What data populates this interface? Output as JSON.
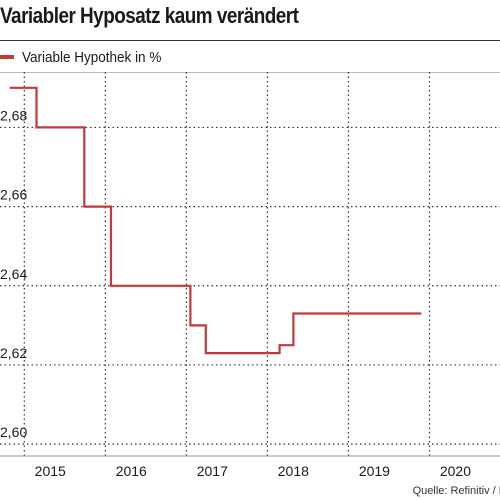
{
  "title": "Variabler Hyposatz kaum verändert",
  "source": "Quelle: Refinitiv / FuW",
  "colors": {
    "line": "#c0393b",
    "grid": "#333333",
    "axis": "#999999"
  },
  "chart_data": {
    "type": "line",
    "title": "Variabler Hyposatz kaum verändert",
    "xlabel": "",
    "ylabel": "",
    "xlim": [
      2014.38,
      2020.55
    ],
    "ylim": [
      2.597,
      2.694
    ],
    "grid": true,
    "legend_position": "top-left",
    "y_ticks": [
      2.6,
      2.62,
      2.64,
      2.66,
      2.68
    ],
    "y_tick_labels": [
      "2,60",
      "2,62",
      "2,64",
      "2,66",
      "2,68"
    ],
    "x_ticks": [
      2015,
      2016,
      2017,
      2018,
      2019,
      2020
    ],
    "x_tick_labels": [
      "2015",
      "2016",
      "2017",
      "2018",
      "2019",
      "2020"
    ],
    "x_grid": [
      2014.68,
      2015.68,
      2016.68,
      2017.68,
      2018.68,
      2019.68
    ],
    "series": [
      {
        "name": "Variable Hypothek in %",
        "step": true,
        "x": [
          2014.5,
          2014.83,
          2014.83,
          2015.42,
          2015.42,
          2015.75,
          2015.75,
          2016.73,
          2016.73,
          2016.92,
          2016.92,
          2017.83,
          2017.83,
          2018.0,
          2018.0,
          2018.08,
          2018.08,
          2019.58
        ],
        "y": [
          2.69,
          2.69,
          2.68,
          2.68,
          2.66,
          2.66,
          2.64,
          2.64,
          2.63,
          2.63,
          2.623,
          2.623,
          2.625,
          2.625,
          2.633,
          2.633,
          2.633,
          2.633
        ]
      }
    ]
  }
}
